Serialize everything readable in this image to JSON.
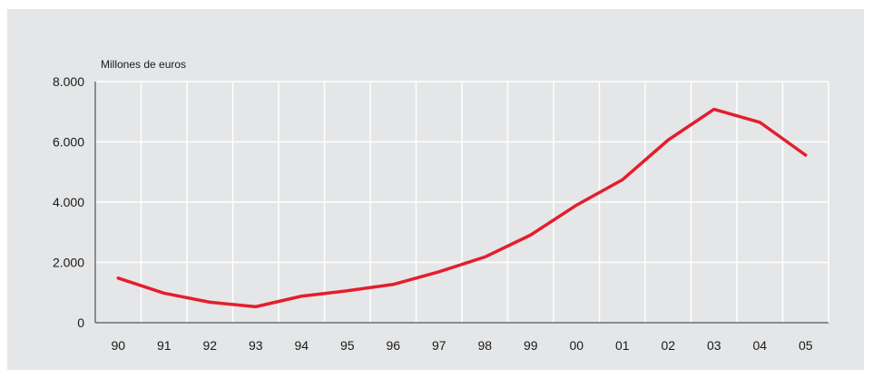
{
  "chart_data": {
    "type": "line",
    "title": "",
    "xlabel": "",
    "ylabel": "Millones de euros",
    "categories": [
      "90",
      "91",
      "92",
      "93",
      "94",
      "95",
      "96",
      "97",
      "98",
      "99",
      "00",
      "01",
      "02",
      "03",
      "04",
      "05"
    ],
    "series": [
      {
        "values": [
          1480,
          980,
          680,
          530,
          880,
          1060,
          1270,
          1690,
          2180,
          2910,
          3900,
          4740,
          6060,
          7080,
          6650,
          5560
        ]
      }
    ],
    "ylim": [
      0,
      8000
    ],
    "yticks": [
      0,
      2000,
      4000,
      6000,
      8000
    ],
    "ytick_labels": [
      "0",
      "2.000",
      "4.000",
      "6.000",
      "8.000"
    ],
    "grid": true,
    "line_color": "#e31e2d",
    "grid_color": "#ffffff",
    "background_color": "#e5e6e7"
  }
}
